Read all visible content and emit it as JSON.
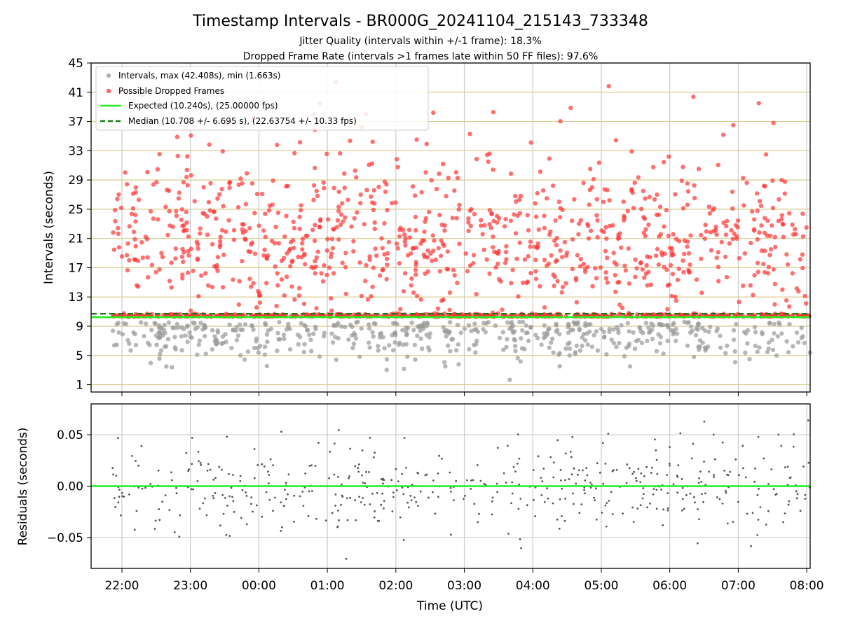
{
  "figure": {
    "title": "Timestamp Intervals - BR000G_20241104_215143_733348",
    "subtitle_1": "Jitter Quality (intervals within +/-1 frame): 18.3%",
    "subtitle_2": "Dropped Frame Rate (intervals >1 frames late within 50 FF files): 97.6%",
    "xlabel": "Time (UTC)"
  },
  "chart_data": [
    {
      "type": "scatter",
      "ylabel": "Intervals (seconds)",
      "ylim": [
        0,
        45
      ],
      "yticks": [
        "1",
        "5",
        "9",
        "13",
        "17",
        "21",
        "25",
        "29",
        "33",
        "37",
        "41",
        "45"
      ],
      "xticks": [
        "22:00",
        "23:00",
        "00:00",
        "01:00",
        "02:00",
        "03:00",
        "04:00",
        "05:00",
        "06:00",
        "07:00",
        "08:00"
      ],
      "xlim_hours": [
        21.55,
        32.05
      ],
      "grid": true,
      "legend_position": "top-left",
      "legend": [
        {
          "label": "Intervals, max (42.408s), min (1.663s)",
          "kind": "dot",
          "color": "#999999"
        },
        {
          "label": "Possible Dropped Frames",
          "kind": "dot",
          "color": "#ff3333"
        },
        {
          "label": "Expected (10.240s), (25.00000 fps)",
          "kind": "line",
          "color": "#22ee22"
        },
        {
          "label": "Median (10.708 +/- 6.695 s), (22.63754 +/- 10.33 fps)",
          "kind": "dashed",
          "color": "#1a7a1a"
        }
      ],
      "expected_interval": 10.24,
      "median_interval": 10.708,
      "max_interval": 42.408,
      "min_interval": 1.663,
      "start_time_hours": 21.86,
      "end_time_hours": 32.05,
      "series": [
        {
          "name": "Intervals, max (42.408s), min (1.663s)",
          "color": "#999999",
          "distribution": "normal intervals, roughly 3 to 10 s",
          "count": 520
        },
        {
          "name": "Possible Dropped Frames",
          "color": "#ff3333",
          "distribution": "10.2 to 42 s, dense band near 10.2 s",
          "count": 1500
        }
      ]
    },
    {
      "type": "scatter",
      "ylabel": "Residuals (seconds)",
      "ylim": [
        -0.08,
        0.08
      ],
      "yticks": [
        "−0.05",
        "0.00",
        "0.05"
      ],
      "ytick_values": [
        -0.05,
        0.0,
        0.05
      ],
      "grid": true,
      "zero_line_color": "#22ee22",
      "series": [
        {
          "name": "residuals",
          "color": "#555555",
          "distribution": "mostly within -0.05 to 0.05 s",
          "count": 500
        }
      ]
    }
  ]
}
